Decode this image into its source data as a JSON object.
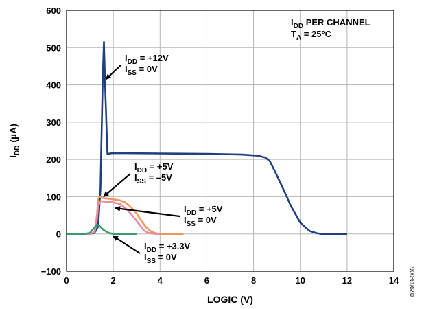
{
  "chart_data": {
    "type": "line",
    "title": "",
    "xlabel": "LOGIC (V)",
    "ylabel": {
      "main": "I",
      "sub": "DD",
      "unit": " (µA)"
    },
    "xlim": [
      0,
      14
    ],
    "ylim": [
      -100,
      600
    ],
    "xticks": [
      0,
      2,
      4,
      6,
      8,
      10,
      12,
      14
    ],
    "yticks": [
      -100,
      0,
      100,
      200,
      300,
      400,
      500,
      600
    ],
    "grid": true,
    "figure_id": "07983-006",
    "header_annotation": [
      {
        "main": "I",
        "sub": "DD",
        "rest": " PER CHANNEL"
      },
      {
        "main": "T",
        "sub": "A",
        "rest": " = 25°C"
      }
    ],
    "series": [
      {
        "color": "#1f3f7f",
        "x": [
          0,
          1.0,
          1.2,
          1.35,
          1.45,
          1.55,
          1.6,
          1.65,
          1.75,
          2.0,
          4.0,
          6.0,
          7.5,
          8.2,
          8.5,
          8.7,
          8.9,
          9.2,
          9.6,
          10.0,
          10.4,
          10.7,
          10.9,
          11.2,
          12.0
        ],
        "y": [
          0,
          0,
          3,
          20,
          120,
          420,
          515,
          400,
          215,
          217,
          216,
          215,
          213,
          210,
          205,
          195,
          170,
          130,
          75,
          30,
          8,
          2,
          0,
          0,
          0
        ]
      },
      {
        "color": "#f0955a",
        "x": [
          0,
          1.0,
          1.2,
          1.3,
          1.35,
          1.4,
          1.5,
          2.0,
          2.3,
          2.5,
          2.7,
          3.0,
          3.2,
          3.4,
          3.6,
          3.8,
          4.0,
          5.0
        ],
        "y": [
          0,
          0,
          5,
          50,
          90,
          100,
          97,
          93,
          90,
          85,
          75,
          55,
          35,
          18,
          7,
          2,
          0,
          0
        ]
      },
      {
        "color": "#e88aa8",
        "x": [
          0,
          1.0,
          1.2,
          1.3,
          1.35,
          1.45,
          2.0,
          2.3,
          2.6,
          3.0,
          3.3,
          3.5,
          3.8,
          4.0
        ],
        "y": [
          0,
          0,
          5,
          40,
          75,
          88,
          85,
          80,
          65,
          35,
          10,
          3,
          0,
          0
        ]
      },
      {
        "color": "#3a9a6a",
        "x": [
          0,
          0.8,
          1.0,
          1.2,
          1.3,
          1.4,
          1.6,
          1.8,
          2.0,
          2.3,
          3.0
        ],
        "y": [
          0,
          0,
          3,
          18,
          25,
          22,
          10,
          3,
          0,
          0,
          0
        ]
      }
    ],
    "annotations": [
      {
        "l1_main": "I",
        "l1_sub": "DD",
        "l1_rest": " = +12V",
        "l2_main": "I",
        "l2_sub": "SS",
        "l2_rest": " = 0V",
        "target": [
          1.6,
          410
        ]
      },
      {
        "l1_main": "I",
        "l1_sub": "DD",
        "l1_rest": " = +5V",
        "l2_main": "I",
        "l2_sub": "SS",
        "l2_rest": " = –5V",
        "target": [
          1.5,
          95
        ]
      },
      {
        "l1_main": "I",
        "l1_sub": "DD",
        "l1_rest": " = +5V",
        "l2_main": "I",
        "l2_sub": "SS",
        "l2_rest": " = 0V",
        "target": [
          2.0,
          75
        ]
      },
      {
        "l1_main": "I",
        "l1_sub": "DD",
        "l1_rest": " = +3.3V",
        "l2_main": "I",
        "l2_sub": "SS",
        "l2_rest": " = 0V",
        "target": [
          1.9,
          0
        ]
      }
    ]
  }
}
